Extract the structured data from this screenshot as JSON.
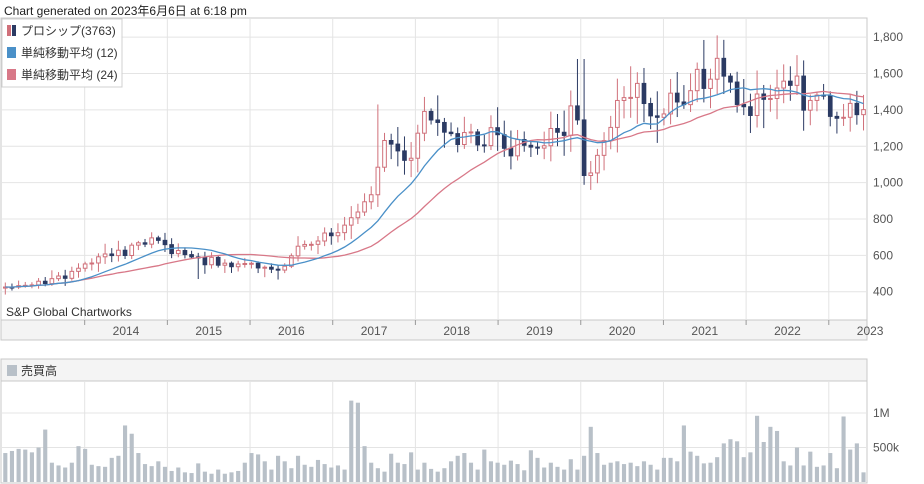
{
  "header": {
    "generated": "Chart generated on 2023年6月6日 at 6:18 pm"
  },
  "source_label": "S&P Global Chartworks",
  "colors": {
    "up": "#d0707a",
    "down": "#2b3a63",
    "ma12": "#4a90c8",
    "ma24": "#d87888",
    "volume": "#b8c0c8",
    "grid": "#e4e4e4",
    "frame": "#c8c8c8"
  },
  "chart_data": [
    {
      "type": "candlestick",
      "legend": [
        {
          "label": "プロシップ(3763)",
          "kind": "candle"
        },
        {
          "label": "単純移動平均 (12)",
          "kind": "ma12"
        },
        {
          "label": "単純移動平均 (24)",
          "kind": "ma24"
        }
      ],
      "ylim": [
        250,
        1900
      ],
      "yticks": [
        400,
        600,
        800,
        1000,
        1200,
        1400,
        1600,
        1800
      ],
      "ytick_labels": [
        "400",
        "600",
        "800",
        "1,000",
        "1,200",
        "1,400",
        "1,600",
        "1,800"
      ],
      "xlim": [
        2013.0,
        2023.45
      ],
      "xticks": [
        2014,
        2015,
        2016,
        2017,
        2018,
        2019,
        2020,
        2021,
        2022,
        2023
      ],
      "xtick_labels": [
        "2014",
        "2015",
        "2016",
        "2017",
        "2018",
        "2019",
        "2020",
        "2021",
        "2022",
        "2023"
      ],
      "anchors": [
        [
          2013.04,
          420
        ],
        [
          2013.3,
          440
        ],
        [
          2013.6,
          470
        ],
        [
          2013.9,
          500
        ],
        [
          2014.1,
          560
        ],
        [
          2014.3,
          620
        ],
        [
          2014.6,
          640
        ],
        [
          2014.85,
          680
        ],
        [
          2015.0,
          650
        ],
        [
          2015.25,
          600
        ],
        [
          2015.5,
          570
        ],
        [
          2015.75,
          540
        ],
        [
          2015.95,
          560
        ],
        [
          2016.1,
          530
        ],
        [
          2016.3,
          520
        ],
        [
          2016.45,
          560
        ],
        [
          2016.6,
          650
        ],
        [
          2016.8,
          700
        ],
        [
          2017.0,
          730
        ],
        [
          2017.15,
          760
        ],
        [
          2017.3,
          850
        ],
        [
          2017.45,
          930
        ],
        [
          2017.6,
          1230
        ],
        [
          2017.75,
          1180
        ],
        [
          2017.95,
          1150
        ],
        [
          2018.1,
          1380
        ],
        [
          2018.3,
          1350
        ],
        [
          2018.5,
          1250
        ],
        [
          2018.7,
          1230
        ],
        [
          2018.95,
          1280
        ],
        [
          2019.1,
          1180
        ],
        [
          2019.3,
          1200
        ],
        [
          2019.5,
          1230
        ],
        [
          2019.75,
          1300
        ],
        [
          2019.95,
          1420
        ],
        [
          2020.05,
          1050
        ],
        [
          2020.2,
          1100
        ],
        [
          2020.35,
          1350
        ],
        [
          2020.55,
          1500
        ],
        [
          2020.75,
          1480
        ],
        [
          2020.95,
          1380
        ],
        [
          2021.2,
          1440
        ],
        [
          2021.4,
          1560
        ],
        [
          2021.6,
          1680
        ],
        [
          2021.8,
          1520
        ],
        [
          2021.95,
          1400
        ],
        [
          2022.15,
          1420
        ],
        [
          2022.35,
          1480
        ],
        [
          2022.5,
          1580
        ],
        [
          2022.7,
          1460
        ],
        [
          2022.85,
          1500
        ],
        [
          2023.0,
          1400
        ],
        [
          2023.15,
          1370
        ],
        [
          2023.4,
          1410
        ]
      ],
      "highs": [
        [
          2017.55,
          1430
        ],
        [
          2020.0,
          1680
        ],
        [
          2021.62,
          1810
        ],
        [
          2018.25,
          1470
        ],
        [
          2020.6,
          1640
        ],
        [
          2022.5,
          1640
        ]
      ],
      "lows": [
        [
          2020.1,
          960
        ],
        [
          2015.4,
          470
        ],
        [
          2016.15,
          480
        ],
        [
          2022.2,
          1300
        ]
      ]
    },
    {
      "type": "bar",
      "legend": [
        {
          "label": "売買高",
          "kind": "volume"
        }
      ],
      "ylim": [
        0,
        1450000
      ],
      "yticks": [
        500000,
        1000000
      ],
      "ytick_labels": [
        "500k",
        "1M"
      ],
      "values": [
        420000,
        450000,
        480000,
        470000,
        430000,
        500000,
        760000,
        280000,
        240000,
        210000,
        280000,
        520000,
        480000,
        250000,
        230000,
        220000,
        350000,
        380000,
        820000,
        700000,
        420000,
        260000,
        230000,
        300000,
        220000,
        160000,
        210000,
        140000,
        130000,
        270000,
        150000,
        120000,
        180000,
        120000,
        140000,
        160000,
        280000,
        420000,
        400000,
        300000,
        180000,
        380000,
        300000,
        200000,
        380000,
        250000,
        220000,
        320000,
        260000,
        210000,
        240000,
        180000,
        1180000,
        1150000,
        520000,
        280000,
        200000,
        150000,
        410000,
        280000,
        260000,
        430000,
        180000,
        280000,
        190000,
        150000,
        200000,
        300000,
        380000,
        420000,
        280000,
        180000,
        470000,
        300000,
        280000,
        250000,
        310000,
        260000,
        170000,
        460000,
        350000,
        210000,
        280000,
        220000,
        180000,
        330000,
        180000,
        380000,
        800000,
        420000,
        250000,
        280000,
        300000,
        260000,
        280000,
        230000,
        300000,
        250000,
        180000,
        350000,
        350000,
        300000,
        820000,
        440000,
        380000,
        270000,
        280000,
        360000,
        560000,
        620000,
        590000,
        360000,
        430000,
        960000,
        580000,
        800000,
        740000,
        300000,
        240000,
        500000,
        240000,
        440000,
        220000,
        240000,
        420000,
        200000,
        950000,
        470000,
        560000,
        140000
      ]
    }
  ]
}
